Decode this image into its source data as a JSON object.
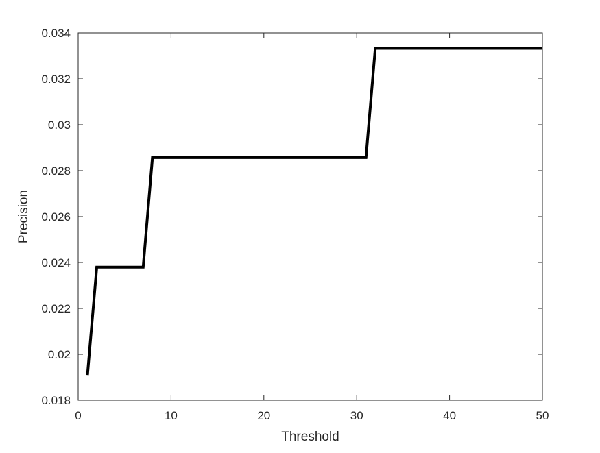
{
  "chart_data": {
    "type": "line",
    "title": "",
    "xlabel": "Threshold",
    "ylabel": "Precision",
    "xlim": [
      0,
      50
    ],
    "ylim": [
      0.018,
      0.034
    ],
    "grid": false,
    "x_ticks": [
      0,
      10,
      20,
      30,
      40,
      50
    ],
    "x_tick_labels": [
      "0",
      "10",
      "20",
      "30",
      "40",
      "50"
    ],
    "y_ticks": [
      0.018,
      0.02,
      0.022,
      0.024,
      0.026,
      0.028,
      0.03,
      0.032,
      0.034
    ],
    "y_tick_labels": [
      "0.018",
      "0.02",
      "0.022",
      "0.024",
      "0.026",
      "0.028",
      "0.03",
      "0.032",
      "0.034"
    ],
    "series": [
      {
        "color": "#000000",
        "x": [
          1,
          2,
          7,
          8,
          31,
          32,
          50
        ],
        "y": [
          0.0191,
          0.0238,
          0.0238,
          0.02857,
          0.02857,
          0.03333,
          0.03333
        ]
      }
    ]
  }
}
